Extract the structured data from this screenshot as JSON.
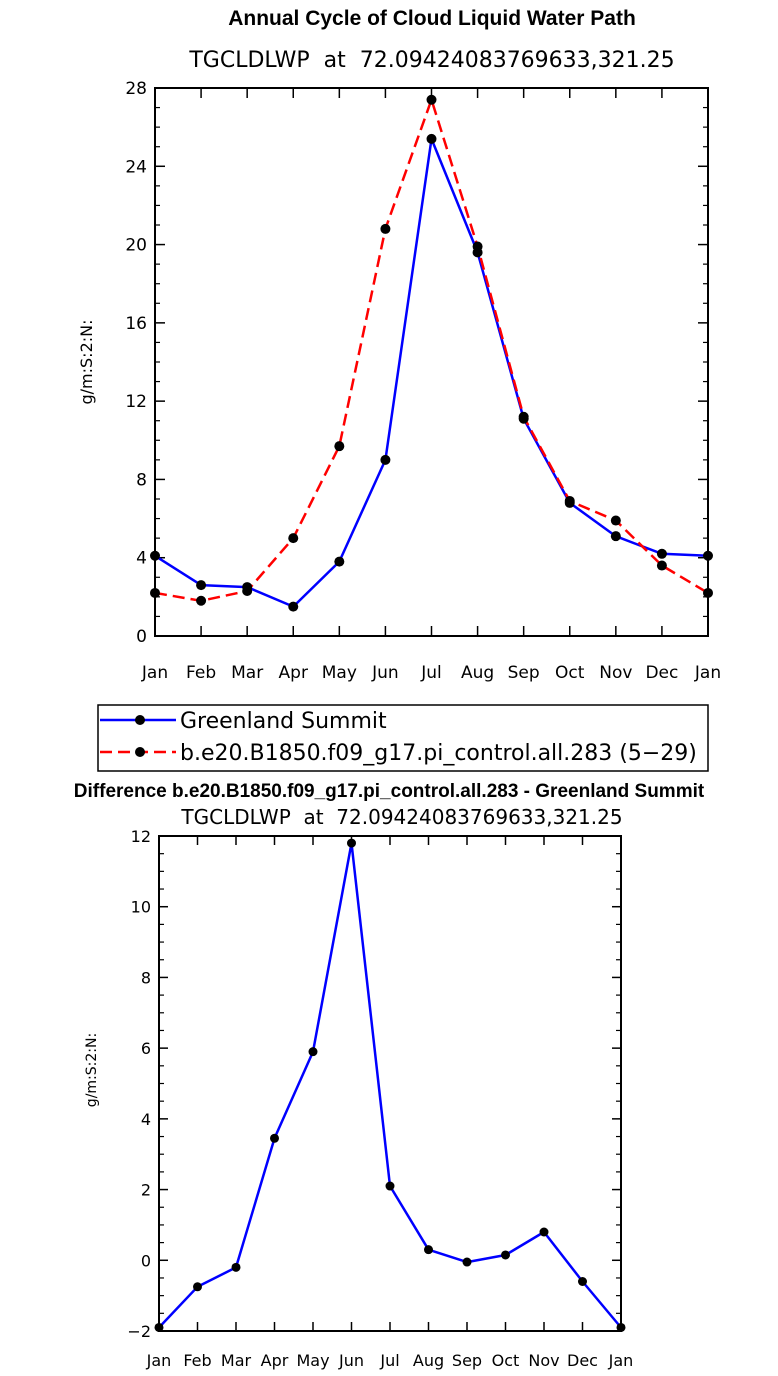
{
  "chart_data": [
    {
      "type": "line",
      "title": "Annual Cycle of Cloud Liquid Water Path",
      "subtitle": "TGCLDLWP  at  72.09424083769633,321.25",
      "ylabel": "g/m:S:2:N:",
      "xlabel": "",
      "categories": [
        "Jan",
        "Feb",
        "Mar",
        "Apr",
        "May",
        "Jun",
        "Jul",
        "Aug",
        "Sep",
        "Oct",
        "Nov",
        "Dec",
        "Jan"
      ],
      "ylim": [
        0,
        28
      ],
      "yticks": [
        "0",
        "4",
        "8",
        "12",
        "16",
        "20",
        "24",
        "28"
      ],
      "series": [
        {
          "name": "Greenland Summit",
          "color": "#0000ff",
          "dash": "solid",
          "values": [
            4.1,
            2.6,
            2.5,
            1.5,
            3.8,
            9.0,
            25.4,
            19.6,
            11.1,
            6.8,
            5.1,
            4.2,
            4.1
          ]
        },
        {
          "name": "b.e20.B1850.f09_g17.pi_control.all.283 (5−29)",
          "color": "#ff0000",
          "dash": "dashed",
          "values": [
            2.2,
            1.8,
            2.3,
            5.0,
            9.7,
            20.8,
            27.4,
            19.9,
            11.2,
            6.9,
            5.9,
            3.6,
            2.2
          ]
        }
      ],
      "grid": false,
      "legend": "bottom"
    },
    {
      "type": "line",
      "title": "Difference b.e20.B1850.f09_g17.pi_control.all.283 - Greenland Summit",
      "subtitle": "TGCLDLWP  at  72.09424083769633,321.25",
      "ylabel": "g/m:S:2:N:",
      "xlabel": "",
      "categories": [
        "Jan",
        "Feb",
        "Mar",
        "Apr",
        "May",
        "Jun",
        "Jul",
        "Aug",
        "Sep",
        "Oct",
        "Nov",
        "Dec",
        "Jan"
      ],
      "ylim": [
        -2,
        12
      ],
      "yticks": [
        "−2",
        "0",
        "2",
        "4",
        "6",
        "8",
        "10",
        "12"
      ],
      "series": [
        {
          "name": "",
          "color": "#0000ff",
          "dash": "solid",
          "values": [
            -1.9,
            -0.75,
            -0.2,
            3.45,
            5.9,
            11.8,
            2.1,
            0.3,
            -0.05,
            0.15,
            0.8,
            -0.6,
            -1.9
          ]
        }
      ],
      "grid": false,
      "legend": "none"
    }
  ]
}
